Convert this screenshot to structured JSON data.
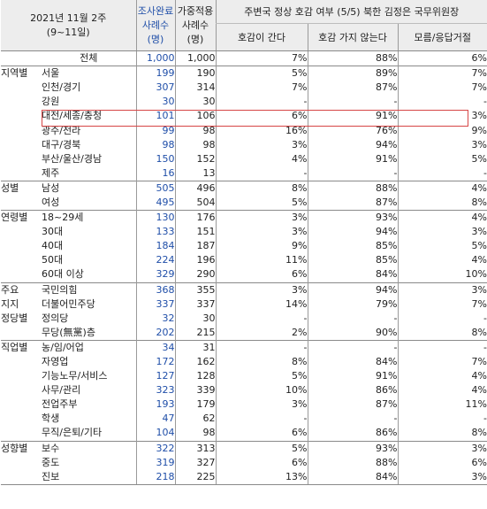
{
  "header": {
    "date_line1": "2021년 11월 2주",
    "date_line2": "(9~11일)",
    "sample_label_1": "조사완료",
    "sample_label_2": "사례수",
    "sample_label_3": "(명)",
    "weight_label_1": "가중적용",
    "weight_label_2": "사례수",
    "weight_label_3": "(명)",
    "question": "주변국 정상 호감 여부 (5/5) 북한 김정은 국무위원장",
    "options": [
      "호감이 간다",
      "호감 가지 않는다",
      "모름/응답거절"
    ]
  },
  "rows": [
    {
      "group": "",
      "sub": "전체",
      "n": "1,000",
      "w": "1,000",
      "p1": "7%",
      "p2": "88%",
      "p3": "6%"
    },
    {
      "group": "지역별",
      "sub": "서울",
      "n": "199",
      "w": "190",
      "p1": "5%",
      "p2": "89%",
      "p3": "7%"
    },
    {
      "group": "",
      "sub": "인천/경기",
      "n": "307",
      "w": "314",
      "p1": "7%",
      "p2": "87%",
      "p3": "7%"
    },
    {
      "group": "",
      "sub": "강원",
      "n": "30",
      "w": "30",
      "p1": "-",
      "p2": "-",
      "p3": "-"
    },
    {
      "group": "",
      "sub": "대전/세종/충청",
      "n": "101",
      "w": "106",
      "p1": "6%",
      "p2": "91%",
      "p3": "3%"
    },
    {
      "group": "",
      "sub": "광주/전라",
      "n": "99",
      "w": "98",
      "p1": "16%",
      "p2": "76%",
      "p3": "9%"
    },
    {
      "group": "",
      "sub": "대구/경북",
      "n": "98",
      "w": "98",
      "p1": "3%",
      "p2": "94%",
      "p3": "3%"
    },
    {
      "group": "",
      "sub": "부산/울산/경남",
      "n": "150",
      "w": "152",
      "p1": "4%",
      "p2": "91%",
      "p3": "5%"
    },
    {
      "group": "",
      "sub": "제주",
      "n": "16",
      "w": "13",
      "p1": "-",
      "p2": "-",
      "p3": "-"
    },
    {
      "group": "성별",
      "sub": "남성",
      "n": "505",
      "w": "496",
      "p1": "8%",
      "p2": "88%",
      "p3": "4%"
    },
    {
      "group": "",
      "sub": "여성",
      "n": "495",
      "w": "504",
      "p1": "5%",
      "p2": "87%",
      "p3": "8%"
    },
    {
      "group": "연령별",
      "sub": "18~29세",
      "n": "130",
      "w": "176",
      "p1": "3%",
      "p2": "93%",
      "p3": "4%"
    },
    {
      "group": "",
      "sub": "30대",
      "n": "133",
      "w": "151",
      "p1": "3%",
      "p2": "94%",
      "p3": "3%"
    },
    {
      "group": "",
      "sub": "40대",
      "n": "184",
      "w": "187",
      "p1": "9%",
      "p2": "85%",
      "p3": "5%"
    },
    {
      "group": "",
      "sub": "50대",
      "n": "224",
      "w": "196",
      "p1": "11%",
      "p2": "85%",
      "p3": "4%"
    },
    {
      "group": "",
      "sub": "60대 이상",
      "n": "329",
      "w": "290",
      "p1": "6%",
      "p2": "84%",
      "p3": "10%"
    },
    {
      "group": "주요",
      "sub": "국민의힘",
      "n": "368",
      "w": "355",
      "p1": "3%",
      "p2": "94%",
      "p3": "3%"
    },
    {
      "group": "지지",
      "sub": "더불어민주당",
      "n": "337",
      "w": "337",
      "p1": "14%",
      "p2": "79%",
      "p3": "7%"
    },
    {
      "group": "정당별",
      "sub": "정의당",
      "n": "32",
      "w": "30",
      "p1": "-",
      "p2": "-",
      "p3": "-"
    },
    {
      "group": "",
      "sub": "무당(無黨)층",
      "n": "202",
      "w": "215",
      "p1": "2%",
      "p2": "90%",
      "p3": "8%"
    },
    {
      "group": "직업별",
      "sub": "농/임/어업",
      "n": "34",
      "w": "31",
      "p1": "-",
      "p2": "-",
      "p3": "-"
    },
    {
      "group": "",
      "sub": "자영업",
      "n": "172",
      "w": "162",
      "p1": "8%",
      "p2": "84%",
      "p3": "7%"
    },
    {
      "group": "",
      "sub": "기능노무/서비스",
      "n": "127",
      "w": "128",
      "p1": "5%",
      "p2": "91%",
      "p3": "4%"
    },
    {
      "group": "",
      "sub": "사무/관리",
      "n": "323",
      "w": "339",
      "p1": "10%",
      "p2": "86%",
      "p3": "4%"
    },
    {
      "group": "",
      "sub": "전업주부",
      "n": "193",
      "w": "179",
      "p1": "3%",
      "p2": "87%",
      "p3": "11%"
    },
    {
      "group": "",
      "sub": "학생",
      "n": "47",
      "w": "62",
      "p1": "-",
      "p2": "-",
      "p3": "-"
    },
    {
      "group": "",
      "sub": "무직/은퇴/기타",
      "n": "104",
      "w": "98",
      "p1": "6%",
      "p2": "86%",
      "p3": "8%"
    },
    {
      "group": "성향별",
      "sub": "보수",
      "n": "322",
      "w": "313",
      "p1": "5%",
      "p2": "93%",
      "p3": "3%"
    },
    {
      "group": "",
      "sub": "중도",
      "n": "319",
      "w": "327",
      "p1": "6%",
      "p2": "88%",
      "p3": "6%"
    },
    {
      "group": "",
      "sub": "진보",
      "n": "218",
      "w": "225",
      "p1": "13%",
      "p2": "84%",
      "p3": "3%"
    }
  ]
}
